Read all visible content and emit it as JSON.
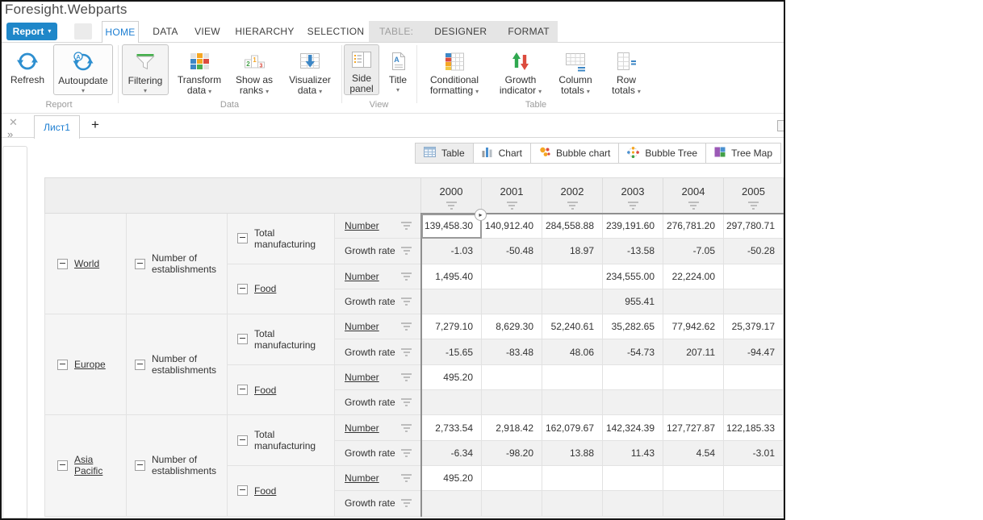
{
  "window": {
    "title": "Foresight.Webparts"
  },
  "menu": {
    "report_label": "Report",
    "tabs": [
      "HOME",
      "DATA",
      "VIEW",
      "HIERARCHY",
      "SELECTION"
    ],
    "active_tab": "HOME",
    "context_label": "TABLE:",
    "context_tabs": [
      "DESIGNER",
      "FORMAT"
    ]
  },
  "ribbon": {
    "groups": [
      {
        "label": "Report",
        "buttons": [
          {
            "label": "Refresh"
          },
          {
            "label": "Autoupdate",
            "dropdown": true,
            "boxed": true
          }
        ]
      },
      {
        "label": "Data",
        "buttons": [
          {
            "label": "Filtering",
            "dropdown": true,
            "boxed": true
          },
          {
            "label": "Transform data",
            "dropdown": true
          },
          {
            "label": "Show as ranks",
            "dropdown": true
          },
          {
            "label": "Visualizer data",
            "dropdown": true
          }
        ]
      },
      {
        "label": "View",
        "buttons": [
          {
            "label": "Side panel",
            "boxed": true,
            "active": true
          },
          {
            "label": "Title",
            "dropdown": true
          }
        ]
      },
      {
        "label": "Table",
        "buttons": [
          {
            "label": "Conditional formatting",
            "dropdown": true
          },
          {
            "label": "Growth indicator",
            "dropdown": true
          },
          {
            "label": "Column totals",
            "dropdown": true
          },
          {
            "label": "Row totals",
            "dropdown": true
          }
        ]
      }
    ]
  },
  "sheet": {
    "tab_label": "Лист1",
    "add_label": "+"
  },
  "views": [
    {
      "label": "Table",
      "active": true
    },
    {
      "label": "Chart"
    },
    {
      "label": "Bubble chart"
    },
    {
      "label": "Bubble Tree"
    },
    {
      "label": "Tree Map"
    }
  ],
  "table": {
    "years": [
      "2000",
      "2001",
      "2002",
      "2003",
      "2004",
      "2005"
    ],
    "selected_cell": {
      "region": 0,
      "category": 0,
      "metric": 0,
      "year": 0
    },
    "regions": [
      {
        "name": "World",
        "measure": "Number of establishments",
        "categories": [
          {
            "name": "Total manufacturing",
            "link": false,
            "metrics": [
              {
                "label": "Number",
                "link": true,
                "values": [
                  "139,458.30",
                  "140,912.40",
                  "284,558.88",
                  "239,191.60",
                  "276,781.20",
                  "297,780.71"
                ]
              },
              {
                "label": "Growth rate",
                "link": false,
                "values": [
                  "-1.03",
                  "-50.48",
                  "18.97",
                  "-13.58",
                  "-7.05",
                  "-50.28"
                ]
              }
            ]
          },
          {
            "name": "Food",
            "link": true,
            "metrics": [
              {
                "label": "Number",
                "link": true,
                "values": [
                  "1,495.40",
                  "",
                  "",
                  "234,555.00",
                  "22,224.00",
                  ""
                ]
              },
              {
                "label": "Growth rate",
                "link": false,
                "values": [
                  "",
                  "",
                  "",
                  "955.41",
                  "",
                  ""
                ]
              }
            ]
          }
        ]
      },
      {
        "name": "Europe",
        "measure": "Number of establishments",
        "categories": [
          {
            "name": "Total manufacturing",
            "link": false,
            "metrics": [
              {
                "label": "Number",
                "link": true,
                "values": [
                  "7,279.10",
                  "8,629.30",
                  "52,240.61",
                  "35,282.65",
                  "77,942.62",
                  "25,379.17"
                ]
              },
              {
                "label": "Growth rate",
                "link": false,
                "values": [
                  "-15.65",
                  "-83.48",
                  "48.06",
                  "-54.73",
                  "207.11",
                  "-94.47"
                ]
              }
            ]
          },
          {
            "name": "Food",
            "link": true,
            "metrics": [
              {
                "label": "Number",
                "link": true,
                "values": [
                  "495.20",
                  "",
                  "",
                  "",
                  "",
                  ""
                ]
              },
              {
                "label": "Growth rate",
                "link": false,
                "values": [
                  "",
                  "",
                  "",
                  "",
                  "",
                  ""
                ]
              }
            ]
          }
        ]
      },
      {
        "name": "Asia Pacific",
        "measure": "Number of establishments",
        "categories": [
          {
            "name": "Total manufacturing",
            "link": false,
            "metrics": [
              {
                "label": "Number",
                "link": true,
                "values": [
                  "2,733.54",
                  "2,918.42",
                  "162,079.67",
                  "142,324.39",
                  "127,727.87",
                  "122,185.33"
                ]
              },
              {
                "label": "Growth rate",
                "link": false,
                "values": [
                  "-6.34",
                  "-98.20",
                  "13.88",
                  "11.43",
                  "4.54",
                  "-3.01"
                ]
              }
            ]
          },
          {
            "name": "Food",
            "link": true,
            "metrics": [
              {
                "label": "Number",
                "link": true,
                "values": [
                  "495.20",
                  "",
                  "",
                  "",
                  "",
                  ""
                ]
              },
              {
                "label": "Growth rate",
                "link": false,
                "values": [
                  "",
                  "",
                  "",
                  "",
                  "",
                  ""
                ]
              }
            ]
          }
        ]
      }
    ]
  },
  "colors": {
    "accent_blue": "#1f87c9",
    "active_tab_blue": "#1c7ed2",
    "positive_green": "#2fa84f",
    "negative_red": "#dc4b3e"
  }
}
